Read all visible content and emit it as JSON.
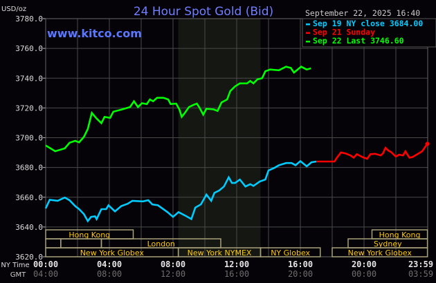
{
  "header": {
    "title": "24 Hour Spot Gold (Bid)",
    "brand": "www.kitco.com",
    "datetime": "September 22, 2025 16:40",
    "unit": "USD/oz"
  },
  "colors": {
    "background": "#050308",
    "grid": "#4a4a4a",
    "title": "#6f7fff",
    "session_border": "#a8a27a",
    "session_text": "#ffcc00",
    "comex_shade": "#151713"
  },
  "chart_data": {
    "type": "line",
    "title": "24 Hour Spot Gold (Bid)",
    "ylabel": "USD/oz",
    "ylim": [
      3620,
      3780
    ],
    "yticks": [
      "3780.0",
      "3760.0",
      "3740.0",
      "3720.0",
      "3700.0",
      "3680.0",
      "3660.0",
      "3640.0",
      "3620.0"
    ],
    "xlim": [
      "00:00",
      "23:59"
    ],
    "xaxis_rows": [
      {
        "label": "NY Time",
        "ticks": [
          "00:00",
          "04:00",
          "08:00",
          "12:00",
          "16:00",
          "20:00",
          "23:59"
        ]
      },
      {
        "label": "GMT",
        "ticks": [
          "04:00",
          "08:00",
          "12:00",
          "16:00",
          "20:00",
          "00:00",
          "03:59"
        ]
      }
    ],
    "grid": true,
    "legend_placement": "top-right",
    "shaded_period": [
      "08:20",
      "13:30"
    ],
    "series": [
      {
        "name": "Sep 19 NY close 3684.00",
        "color": "#00ccff",
        "points": [
          [
            "00:00",
            3652.5
          ],
          [
            "00:15",
            3658.3
          ],
          [
            "00:45",
            3657.6
          ],
          [
            "01:12",
            3659.8
          ],
          [
            "01:30",
            3658.0
          ],
          [
            "01:51",
            3654.1
          ],
          [
            "02:06",
            3652.0
          ],
          [
            "02:24",
            3648.7
          ],
          [
            "02:39",
            3644.0
          ],
          [
            "02:51",
            3646.8
          ],
          [
            "03:06",
            3647.2
          ],
          [
            "03:12",
            3645.3
          ],
          [
            "03:30",
            3652.0
          ],
          [
            "03:48",
            3652.0
          ],
          [
            "03:57",
            3654.6
          ],
          [
            "04:21",
            3650.5
          ],
          [
            "04:45",
            3654.1
          ],
          [
            "05:09",
            3655.6
          ],
          [
            "05:27",
            3657.6
          ],
          [
            "06:06",
            3657.2
          ],
          [
            "06:27",
            3658.0
          ],
          [
            "06:42",
            3655.2
          ],
          [
            "07:03",
            3654.6
          ],
          [
            "07:39",
            3650.0
          ],
          [
            "08:00",
            3646.8
          ],
          [
            "08:21",
            3650.0
          ],
          [
            "08:51",
            3647.2
          ],
          [
            "09:09",
            3645.3
          ],
          [
            "09:24",
            3653.0
          ],
          [
            "09:45",
            3655.2
          ],
          [
            "10:06",
            3661.8
          ],
          [
            "10:24",
            3657.6
          ],
          [
            "10:36",
            3662.9
          ],
          [
            "10:54",
            3664.5
          ],
          [
            "11:12",
            3667.2
          ],
          [
            "11:30",
            3673.4
          ],
          [
            "11:42",
            3669.6
          ],
          [
            "11:54",
            3669.6
          ],
          [
            "12:12",
            3671.9
          ],
          [
            "12:33",
            3667.2
          ],
          [
            "12:51",
            3668.8
          ],
          [
            "13:03",
            3667.6
          ],
          [
            "13:27",
            3670.6
          ],
          [
            "13:48",
            3671.9
          ],
          [
            "14:00",
            3678.0
          ],
          [
            "14:24",
            3679.9
          ],
          [
            "14:39",
            3681.5
          ],
          [
            "15:06",
            3683.0
          ],
          [
            "15:27",
            3683.0
          ],
          [
            "15:42",
            3681.5
          ],
          [
            "16:00",
            3684.3
          ],
          [
            "16:24",
            3680.8
          ],
          [
            "16:42",
            3683.5
          ],
          [
            "17:00",
            3684.0
          ]
        ]
      },
      {
        "name": "Sep 21 Sunday",
        "color": "#ff0000",
        "points": [
          [
            "17:00",
            3684.0
          ],
          [
            "18:09",
            3684.0
          ],
          [
            "18:18",
            3686.6
          ],
          [
            "18:33",
            3690.1
          ],
          [
            "18:51",
            3689.4
          ],
          [
            "19:09",
            3688.1
          ],
          [
            "19:21",
            3686.6
          ],
          [
            "19:33",
            3688.9
          ],
          [
            "19:54",
            3687.0
          ],
          [
            "20:12",
            3685.8
          ],
          [
            "20:24",
            3688.9
          ],
          [
            "20:42",
            3689.2
          ],
          [
            "21:03",
            3688.1
          ],
          [
            "21:12",
            3689.6
          ],
          [
            "21:21",
            3693.2
          ],
          [
            "21:33",
            3691.2
          ],
          [
            "21:42",
            3690.4
          ],
          [
            "22:00",
            3687.3
          ],
          [
            "22:12",
            3688.6
          ],
          [
            "22:27",
            3688.1
          ],
          [
            "22:36",
            3690.8
          ],
          [
            "22:51",
            3686.6
          ],
          [
            "23:03",
            3687.0
          ],
          [
            "23:21",
            3688.9
          ],
          [
            "23:39",
            3690.8
          ],
          [
            "23:59",
            3695.9
          ]
        ]
      },
      {
        "name": "Sep 22 Last 3746.60",
        "color": "#00ff00",
        "points": [
          [
            "00:00",
            3694.8
          ],
          [
            "00:36",
            3690.9
          ],
          [
            "01:12",
            3692.8
          ],
          [
            "01:30",
            3696.6
          ],
          [
            "01:51",
            3697.9
          ],
          [
            "02:06",
            3696.9
          ],
          [
            "02:24",
            3700.5
          ],
          [
            "02:39",
            3705.9
          ],
          [
            "02:54",
            3716.7
          ],
          [
            "03:12",
            3712.9
          ],
          [
            "03:30",
            3709.8
          ],
          [
            "03:42",
            3714.0
          ],
          [
            "04:03",
            3713.3
          ],
          [
            "04:15",
            3717.5
          ],
          [
            "04:48",
            3719.0
          ],
          [
            "05:18",
            3720.6
          ],
          [
            "05:33",
            3724.5
          ],
          [
            "05:48",
            3720.6
          ],
          [
            "06:03",
            3723.2
          ],
          [
            "06:21",
            3722.6
          ],
          [
            "06:33",
            3725.7
          ],
          [
            "06:45",
            3724.5
          ],
          [
            "07:00",
            3726.8
          ],
          [
            "07:24",
            3726.8
          ],
          [
            "07:42",
            3725.7
          ],
          [
            "07:51",
            3722.6
          ],
          [
            "08:12",
            3722.9
          ],
          [
            "08:24",
            3719.0
          ],
          [
            "08:33",
            3714.0
          ],
          [
            "08:42",
            3716.0
          ],
          [
            "09:00",
            3720.6
          ],
          [
            "09:18",
            3722.1
          ],
          [
            "09:30",
            3722.9
          ],
          [
            "09:42",
            3719.5
          ],
          [
            "09:54",
            3715.5
          ],
          [
            "10:06",
            3719.5
          ],
          [
            "10:33",
            3719.0
          ],
          [
            "10:48",
            3718.0
          ],
          [
            "11:03",
            3723.7
          ],
          [
            "11:24",
            3725.7
          ],
          [
            "11:36",
            3731.4
          ],
          [
            "11:54",
            3734.5
          ],
          [
            "12:12",
            3736.5
          ],
          [
            "12:39",
            3736.5
          ],
          [
            "12:51",
            3738.1
          ],
          [
            "13:03",
            3736.5
          ],
          [
            "13:18",
            3739.2
          ],
          [
            "13:36",
            3740.0
          ],
          [
            "13:48",
            3744.6
          ],
          [
            "14:06",
            3745.8
          ],
          [
            "14:39",
            3745.3
          ],
          [
            "15:06",
            3747.7
          ],
          [
            "15:24",
            3746.9
          ],
          [
            "15:36",
            3743.8
          ],
          [
            "16:03",
            3747.7
          ],
          [
            "16:24",
            3745.8
          ],
          [
            "16:40",
            3746.6
          ]
        ]
      }
    ],
    "sessions": [
      {
        "row": 0,
        "start": "00:00",
        "end": "05:30",
        "label": "Hong Kong"
      },
      {
        "row": 0,
        "start": "20:30",
        "end": "23:59",
        "label": "Hong Kong"
      },
      {
        "row": 1,
        "start": "00:00",
        "end": "00:57",
        "label": ""
      },
      {
        "row": 1,
        "start": "00:57",
        "end": "03:30",
        "label": ""
      },
      {
        "row": 1,
        "start": "03:30",
        "end": "11:00",
        "label": "London"
      },
      {
        "row": 1,
        "start": "19:00",
        "end": "23:59",
        "label": "Sydney"
      },
      {
        "row": 2,
        "start": "00:00",
        "end": "08:20",
        "label": "New York Globex"
      },
      {
        "row": 2,
        "start": "08:20",
        "end": "13:30",
        "label": "New York NYMEX"
      },
      {
        "row": 2,
        "start": "13:30",
        "end": "17:15",
        "label": "NY Globex"
      },
      {
        "row": 2,
        "start": "18:00",
        "end": "23:59",
        "label": "New York Globex"
      }
    ]
  }
}
